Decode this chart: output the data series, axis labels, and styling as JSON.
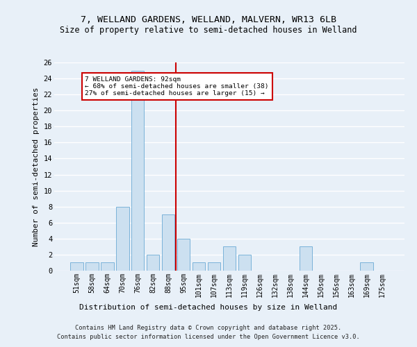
{
  "title": "7, WELLAND GARDENS, WELLAND, MALVERN, WR13 6LB",
  "subtitle": "Size of property relative to semi-detached houses in Welland",
  "xlabel": "Distribution of semi-detached houses by size in Welland",
  "ylabel": "Number of semi-detached properties",
  "categories": [
    "51sqm",
    "58sqm",
    "64sqm",
    "70sqm",
    "76sqm",
    "82sqm",
    "88sqm",
    "95sqm",
    "101sqm",
    "107sqm",
    "113sqm",
    "119sqm",
    "126sqm",
    "132sqm",
    "138sqm",
    "144sqm",
    "150sqm",
    "156sqm",
    "163sqm",
    "169sqm",
    "175sqm"
  ],
  "values": [
    1,
    1,
    1,
    8,
    25,
    2,
    7,
    4,
    1,
    1,
    3,
    2,
    0,
    0,
    0,
    3,
    0,
    0,
    0,
    1,
    0
  ],
  "bar_color": "#cce0f0",
  "bar_edge_color": "#6aaad4",
  "bar_width": 0.85,
  "ylim": [
    0,
    26
  ],
  "yticks": [
    0,
    2,
    4,
    6,
    8,
    10,
    12,
    14,
    16,
    18,
    20,
    22,
    24,
    26
  ],
  "red_line_x": 6.5,
  "red_line_color": "#cc0000",
  "annotation_text": "7 WELLAND GARDENS: 92sqm\n← 68% of semi-detached houses are smaller (38)\n27% of semi-detached houses are larger (15) →",
  "annotation_box_color": "#ffffff",
  "annotation_box_edge": "#cc0000",
  "bg_color": "#e8f0f8",
  "grid_color": "#ffffff",
  "footer1": "Contains HM Land Registry data © Crown copyright and database right 2025.",
  "footer2": "Contains public sector information licensed under the Open Government Licence v3.0."
}
